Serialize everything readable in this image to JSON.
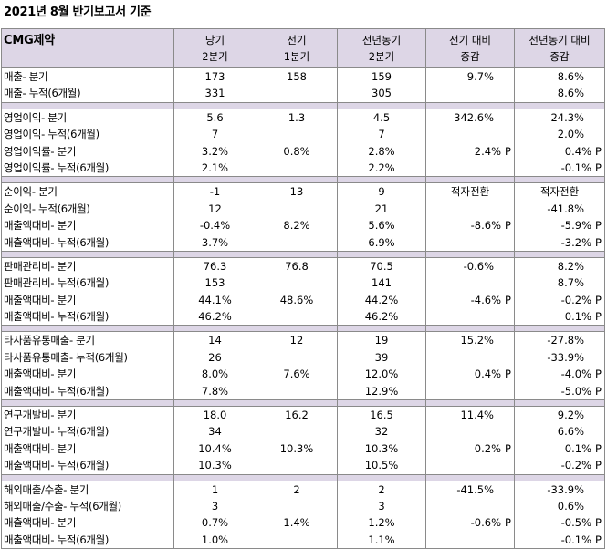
{
  "title": "2021년 8월 반기보고서 기준",
  "header": {
    "company": "CMG제약",
    "cols": [
      "당기\n2분기",
      "전기\n1분기",
      "전년동기\n2분기",
      "전기 대비\n증감",
      "전년동기 대비\n증감"
    ]
  },
  "groups": [
    {
      "rows": [
        [
          "매출- 분기",
          "173",
          "158",
          "159",
          "9.7%",
          "8.6%"
        ],
        [
          "매출- 누적(6개월)",
          "331",
          "",
          "305",
          "",
          "8.6%"
        ]
      ]
    },
    {
      "rows": [
        [
          "영업이익- 분기",
          "5.6",
          "1.3",
          "4.5",
          "342.6%",
          "24.3%"
        ],
        [
          "영업이익- 누적(6개월)",
          "7",
          "",
          "7",
          "",
          "2.0%"
        ],
        [
          "영업이익률- 분기",
          "3.2%",
          "0.8%",
          "2.8%",
          "2.4%|P",
          "0.4%|P"
        ],
        [
          "영업이익률- 누적(6개월)",
          "2.1%",
          "",
          "2.2%",
          "",
          "-0.1%|P"
        ]
      ]
    },
    {
      "rows": [
        [
          "순이익- 분기",
          "-1",
          "13",
          "9",
          "적자전환",
          "적자전환"
        ],
        [
          "순이익- 누적(6개월)",
          "12",
          "",
          "21",
          "",
          "-41.8%"
        ],
        [
          "매출액대비- 분기",
          "-0.4%",
          "8.2%",
          "5.6%",
          "-8.6%|P",
          "-5.9%|P"
        ],
        [
          "매출액대비- 누적(6개월)",
          "3.7%",
          "",
          "6.9%",
          "",
          "-3.2%|P"
        ]
      ]
    },
    {
      "rows": [
        [
          "판매관리비- 분기",
          "76.3",
          "76.8",
          "70.5",
          "-0.6%",
          "8.2%"
        ],
        [
          "판매관리비- 누적(6개월)",
          "153",
          "",
          "141",
          "",
          "8.7%"
        ],
        [
          "매출액대비- 분기",
          "44.1%",
          "48.6%",
          "44.2%",
          "-4.6%|P",
          "-0.2%|P"
        ],
        [
          "매출액대비- 누적(6개월)",
          "46.2%",
          "",
          "46.2%",
          "",
          "0.1%|P"
        ]
      ]
    },
    {
      "rows": [
        [
          "타사품유통매출- 분기",
          "14",
          "12",
          "19",
          "15.2%",
          "-27.8%"
        ],
        [
          "타사품유통매출- 누적(6개월)",
          "26",
          "",
          "39",
          "",
          "-33.9%"
        ],
        [
          "매출액대비- 분기",
          "8.0%",
          "7.6%",
          "12.0%",
          "0.4%|P",
          "-4.0%|P"
        ],
        [
          "매출액대비- 누적(6개월)",
          "7.8%",
          "",
          "12.9%",
          "",
          "-5.0%|P"
        ]
      ]
    },
    {
      "rows": [
        [
          "연구개발비- 분기",
          "18.0",
          "16.2",
          "16.5",
          "11.4%",
          "9.2%"
        ],
        [
          "연구개발비- 누적(6개월)",
          "34",
          "",
          "32",
          "",
          "6.6%"
        ],
        [
          "매출액대비- 분기",
          "10.4%",
          "10.3%",
          "10.3%",
          "0.2%|P",
          "0.1%|P"
        ],
        [
          "매출액대비- 누적(6개월)",
          "10.3%",
          "",
          "10.5%",
          "",
          "-0.2%|P"
        ]
      ]
    },
    {
      "rows": [
        [
          "해외매출/수출- 분기",
          "1",
          "2",
          "2",
          "-41.5%",
          "-33.9%"
        ],
        [
          "해외매출/수출- 누적(6개월)",
          "3",
          "",
          "3",
          "",
          "0.6%"
        ],
        [
          "매출액대비- 분기",
          "0.7%",
          "1.4%",
          "1.2%",
          "-0.6%|P",
          "-0.5%|P"
        ],
        [
          "매출액대비- 누적(6개월)",
          "1.0%",
          "",
          "1.1%",
          "",
          "-0.1%|P"
        ]
      ]
    }
  ]
}
